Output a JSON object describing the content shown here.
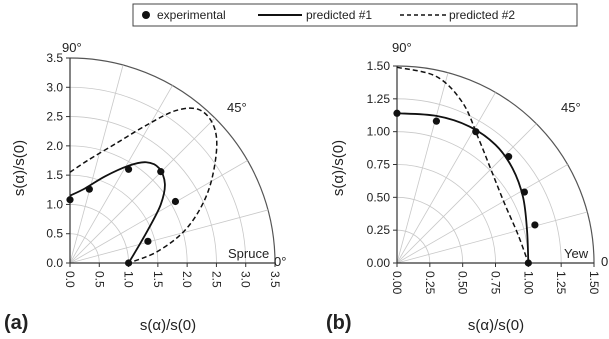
{
  "legend": {
    "experimental": "experimental",
    "predicted1": "predicted #1",
    "predicted2": "predicted #2"
  },
  "angle_labels": {
    "deg90": "90°",
    "deg45": "45°",
    "deg0": "0°"
  },
  "chart_data": [
    {
      "type": "scatter",
      "panel_label": "(a)",
      "species": "Spruce",
      "xlabel": "s(α)/s(0)",
      "ylabel": "s(α)/s(0)",
      "xlim": [
        0,
        3.5
      ],
      "ylim": [
        0,
        3.5
      ],
      "ticks": [
        "0.0",
        "0.5",
        "1.0",
        "1.5",
        "2.0",
        "2.5",
        "3.0",
        "3.5"
      ],
      "tick_values": [
        0,
        0.5,
        1.0,
        1.5,
        2.0,
        2.5,
        3.0,
        3.5
      ],
      "grid": true,
      "series": [
        {
          "name": "experimental",
          "style": "points",
          "points": [
            [
              0.0,
              1.08
            ],
            [
              0.33,
              1.26
            ],
            [
              1.0,
              1.6
            ],
            [
              1.55,
              1.56
            ],
            [
              1.8,
              1.05
            ],
            [
              1.33,
              0.37
            ],
            [
              1.0,
              0.0
            ]
          ]
        },
        {
          "name": "predicted #1",
          "style": "solid",
          "points": [
            [
              0.0,
              1.15
            ],
            [
              0.25,
              1.27
            ],
            [
              0.6,
              1.48
            ],
            [
              1.0,
              1.66
            ],
            [
              1.3,
              1.72
            ],
            [
              1.52,
              1.62
            ],
            [
              1.62,
              1.35
            ],
            [
              1.55,
              1.0
            ],
            [
              1.35,
              0.6
            ],
            [
              1.15,
              0.25
            ],
            [
              1.0,
              0.0
            ]
          ]
        },
        {
          "name": "predicted #2",
          "style": "dashed",
          "points": [
            [
              0.0,
              1.55
            ],
            [
              0.3,
              1.75
            ],
            [
              0.8,
              2.05
            ],
            [
              1.3,
              2.35
            ],
            [
              1.8,
              2.6
            ],
            [
              2.2,
              2.62
            ],
            [
              2.45,
              2.35
            ],
            [
              2.5,
              1.9
            ],
            [
              2.35,
              1.2
            ],
            [
              2.0,
              0.6
            ],
            [
              1.5,
              0.2
            ],
            [
              1.0,
              0.0
            ]
          ]
        }
      ]
    },
    {
      "type": "scatter",
      "panel_label": "(b)",
      "species": "Yew",
      "xlabel": "s(α)/s(0)",
      "ylabel": "s(α)/s(0)",
      "xlim": [
        0,
        1.5
      ],
      "ylim": [
        0,
        1.5
      ],
      "ticks": [
        "0.00",
        "0.25",
        "0.50",
        "0.75",
        "1.00",
        "1.25",
        "1.50"
      ],
      "tick_values": [
        0,
        0.25,
        0.5,
        0.75,
        1.0,
        1.25,
        1.5
      ],
      "grid": true,
      "series": [
        {
          "name": "experimental",
          "style": "points",
          "points": [
            [
              0.0,
              1.14
            ],
            [
              0.3,
              1.08
            ],
            [
              0.6,
              1.0
            ],
            [
              0.85,
              0.81
            ],
            [
              0.97,
              0.54
            ],
            [
              1.05,
              0.29
            ],
            [
              1.0,
              0.0
            ]
          ]
        },
        {
          "name": "predicted #1",
          "style": "solid",
          "points": [
            [
              0.0,
              1.14
            ],
            [
              0.3,
              1.12
            ],
            [
              0.55,
              1.04
            ],
            [
              0.75,
              0.9
            ],
            [
              0.88,
              0.72
            ],
            [
              0.96,
              0.5
            ],
            [
              0.99,
              0.25
            ],
            [
              1.0,
              0.0
            ]
          ]
        },
        {
          "name": "predicted #2",
          "style": "dashed",
          "points": [
            [
              0.0,
              1.49
            ],
            [
              0.3,
              1.42
            ],
            [
              0.5,
              1.22
            ],
            [
              0.62,
              0.95
            ],
            [
              0.72,
              0.7
            ],
            [
              0.82,
              0.45
            ],
            [
              0.92,
              0.22
            ],
            [
              1.0,
              0.0
            ]
          ]
        }
      ]
    }
  ]
}
